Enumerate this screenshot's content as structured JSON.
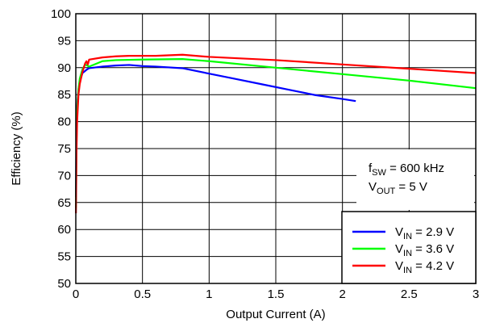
{
  "chart_data": {
    "type": "line",
    "xlabel": "Output Current (A)",
    "ylabel": "Efficiency (%)",
    "xlim": [
      0,
      3
    ],
    "ylim": [
      50,
      100
    ],
    "xticks": [
      "0",
      "0.5",
      "1",
      "1.5",
      "2",
      "2.5",
      "3"
    ],
    "yticks": [
      "50",
      "55",
      "60",
      "65",
      "70",
      "75",
      "80",
      "85",
      "90",
      "95",
      "100"
    ],
    "grid": true,
    "legend_position": "bottom-right",
    "annotations": [
      {
        "main": "f",
        "sub": "SW",
        "rest": " = 600 kHz"
      },
      {
        "main": "V",
        "sub": "OUT",
        "rest": " = 5 V"
      }
    ],
    "series": [
      {
        "name": "V_IN = 2.9 V",
        "label_main": "V",
        "label_sub": "IN",
        "label_rest": " = 2.9 V",
        "color": "#0000ff",
        "x": [
          0.001,
          0.005,
          0.01,
          0.02,
          0.03,
          0.05,
          0.08,
          0.1,
          0.2,
          0.3,
          0.4,
          0.5,
          0.6,
          0.8,
          1.0,
          1.2,
          1.4,
          1.6,
          1.8,
          2.0,
          2.1
        ],
        "y": [
          66,
          78,
          83,
          86,
          87.5,
          89,
          89.6,
          89.9,
          90.2,
          90.4,
          90.5,
          90.3,
          90.2,
          89.9,
          88.9,
          87.9,
          86.9,
          85.9,
          84.9,
          84.2,
          83.8
        ]
      },
      {
        "name": "V_IN = 3.6 V",
        "label_main": "V",
        "label_sub": "IN",
        "label_rest": " = 3.6 V",
        "color": "#00ff00",
        "x": [
          0.001,
          0.005,
          0.01,
          0.02,
          0.03,
          0.05,
          0.07,
          0.1,
          0.2,
          0.3,
          0.5,
          0.8,
          1.0,
          1.5,
          2.0,
          2.5,
          3.0
        ],
        "y": [
          64,
          76,
          82,
          86,
          88,
          89.7,
          90.6,
          90.2,
          91.2,
          91.4,
          91.5,
          91.6,
          91.2,
          90.0,
          88.8,
          87.6,
          86.2
        ]
      },
      {
        "name": "V_IN = 4.2 V",
        "label_main": "V",
        "label_sub": "IN",
        "label_rest": " = 4.2 V",
        "color": "#ff0000",
        "x": [
          0.001,
          0.005,
          0.01,
          0.02,
          0.03,
          0.05,
          0.07,
          0.08,
          0.09,
          0.1,
          0.2,
          0.3,
          0.4,
          0.5,
          0.6,
          0.8,
          1.0,
          1.5,
          2.0,
          2.5,
          3.0
        ],
        "y": [
          63,
          74,
          80,
          85,
          87,
          89.2,
          90.8,
          91.2,
          90.6,
          91.5,
          91.9,
          92.1,
          92.2,
          92.2,
          92.2,
          92.4,
          92.0,
          91.4,
          90.6,
          89.8,
          89.0
        ]
      }
    ]
  }
}
